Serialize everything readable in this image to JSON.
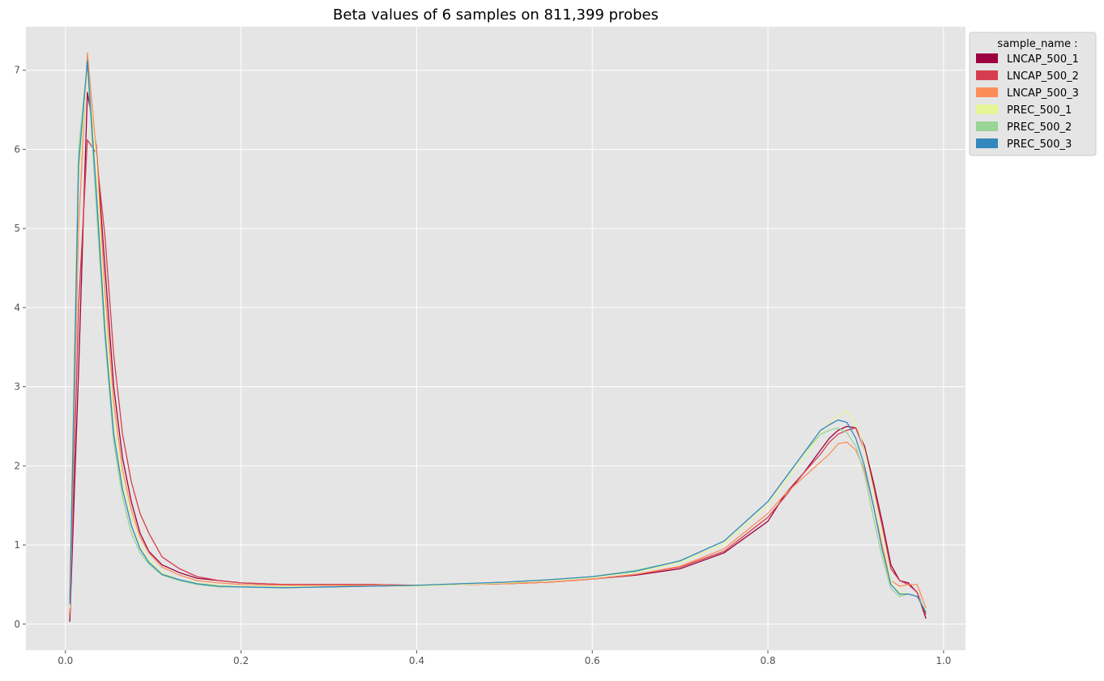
{
  "chart_data": {
    "type": "line",
    "title": "Beta values of 6 samples on 811,399 probes",
    "xlabel": "",
    "ylabel": "",
    "xlim": [
      -0.045,
      1.025
    ],
    "ylim": [
      -0.33,
      7.55
    ],
    "x_ticks": [
      0.0,
      0.2,
      0.4,
      0.6,
      0.8,
      1.0
    ],
    "x_tick_labels": [
      "0.0",
      "0.2",
      "0.4",
      "0.6",
      "0.8",
      "1.0"
    ],
    "y_ticks": [
      0,
      1,
      2,
      3,
      4,
      5,
      6,
      7
    ],
    "y_tick_labels": [
      "0",
      "1",
      "2",
      "3",
      "4",
      "5",
      "6",
      "7"
    ],
    "grid": true,
    "legend": {
      "title": "sample_name :",
      "placement": "outside-top-right"
    },
    "x": [
      0.005,
      0.015,
      0.025,
      0.035,
      0.045,
      0.055,
      0.065,
      0.075,
      0.085,
      0.095,
      0.11,
      0.13,
      0.15,
      0.175,
      0.2,
      0.25,
      0.3,
      0.35,
      0.4,
      0.45,
      0.5,
      0.55,
      0.6,
      0.65,
      0.7,
      0.75,
      0.8,
      0.82,
      0.84,
      0.86,
      0.87,
      0.88,
      0.89,
      0.9,
      0.91,
      0.92,
      0.93,
      0.94,
      0.95,
      0.96,
      0.97,
      0.98
    ],
    "series": [
      {
        "name": "LNCAP_500_1",
        "color": "#9e0142",
        "values": [
          0.03,
          3.2,
          6.72,
          6.05,
          4.5,
          3.0,
          2.1,
          1.55,
          1.15,
          0.92,
          0.75,
          0.65,
          0.58,
          0.55,
          0.52,
          0.5,
          0.5,
          0.5,
          0.49,
          0.5,
          0.51,
          0.53,
          0.57,
          0.62,
          0.7,
          0.9,
          1.3,
          1.65,
          1.9,
          2.2,
          2.35,
          2.45,
          2.5,
          2.48,
          2.25,
          1.8,
          1.3,
          0.75,
          0.55,
          0.52,
          0.4,
          0.07
        ]
      },
      {
        "name": "LNCAP_500_2",
        "color": "#d53e4f",
        "values": [
          0.1,
          4.0,
          6.12,
          5.95,
          4.9,
          3.4,
          2.4,
          1.8,
          1.4,
          1.15,
          0.85,
          0.7,
          0.6,
          0.55,
          0.52,
          0.5,
          0.5,
          0.5,
          0.49,
          0.5,
          0.51,
          0.53,
          0.57,
          0.63,
          0.72,
          0.92,
          1.35,
          1.62,
          1.9,
          2.15,
          2.3,
          2.4,
          2.45,
          2.48,
          2.2,
          1.75,
          1.25,
          0.7,
          0.55,
          0.5,
          0.4,
          0.12
        ]
      },
      {
        "name": "LNCAP_500_3",
        "color": "#fc8d59",
        "values": [
          0.15,
          5.0,
          7.22,
          6.0,
          4.2,
          2.8,
          1.95,
          1.45,
          1.1,
          0.9,
          0.72,
          0.62,
          0.55,
          0.52,
          0.5,
          0.49,
          0.49,
          0.49,
          0.49,
          0.5,
          0.51,
          0.53,
          0.57,
          0.63,
          0.73,
          0.95,
          1.4,
          1.65,
          1.85,
          2.05,
          2.15,
          2.28,
          2.3,
          2.2,
          1.95,
          1.5,
          1.0,
          0.55,
          0.48,
          0.5,
          0.5,
          0.2
        ]
      },
      {
        "name": "PREC_500_1",
        "color": "#e6f598",
        "values": [
          0.2,
          5.6,
          7.0,
          5.9,
          3.9,
          2.6,
          1.85,
          1.35,
          1.0,
          0.82,
          0.65,
          0.56,
          0.52,
          0.49,
          0.48,
          0.47,
          0.47,
          0.48,
          0.48,
          0.5,
          0.52,
          0.55,
          0.59,
          0.66,
          0.78,
          1.02,
          1.5,
          1.8,
          2.1,
          2.4,
          2.55,
          2.62,
          2.7,
          2.55,
          2.2,
          1.7,
          1.1,
          0.55,
          0.4,
          0.38,
          0.35,
          0.18
        ]
      },
      {
        "name": "PREC_500_2",
        "color": "#99d594",
        "values": [
          0.3,
          6.0,
          7.08,
          5.3,
          3.6,
          2.3,
          1.6,
          1.15,
          0.9,
          0.76,
          0.62,
          0.55,
          0.5,
          0.47,
          0.47,
          0.46,
          0.47,
          0.48,
          0.49,
          0.51,
          0.53,
          0.56,
          0.6,
          0.68,
          0.8,
          1.05,
          1.55,
          1.85,
          2.15,
          2.4,
          2.45,
          2.48,
          2.42,
          2.25,
          1.9,
          1.35,
          0.85,
          0.45,
          0.35,
          0.38,
          0.35,
          0.15
        ]
      },
      {
        "name": "PREC_500_3",
        "color": "#3288bd",
        "values": [
          0.25,
          5.8,
          7.12,
          5.5,
          3.7,
          2.4,
          1.7,
          1.25,
          0.95,
          0.78,
          0.63,
          0.56,
          0.51,
          0.48,
          0.47,
          0.46,
          0.47,
          0.48,
          0.49,
          0.51,
          0.53,
          0.56,
          0.6,
          0.67,
          0.8,
          1.05,
          1.55,
          1.85,
          2.15,
          2.45,
          2.52,
          2.58,
          2.55,
          2.35,
          2.0,
          1.5,
          0.95,
          0.5,
          0.38,
          0.38,
          0.35,
          0.15
        ]
      }
    ]
  }
}
